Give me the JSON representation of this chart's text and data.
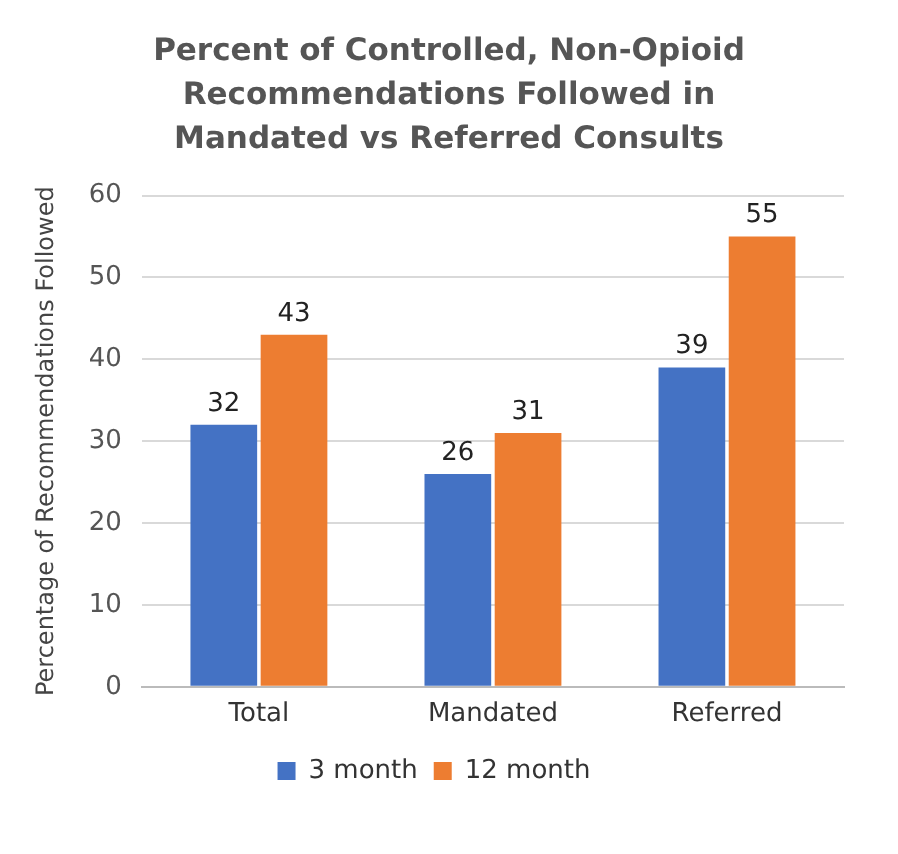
{
  "chart_data": {
    "type": "bar",
    "title": "Percent of Controlled, Non-Opioid Recommendations Followed in Mandated vs Referred Consults",
    "ylabel": "Percentage of Recommendations Followed",
    "categories": [
      "Total",
      "Mandated",
      "Referred"
    ],
    "series": [
      {
        "name": "3 month",
        "color": "#4472c4",
        "values": [
          32,
          26,
          39
        ]
      },
      {
        "name": "12 month",
        "color": "#ed7d31",
        "values": [
          43,
          31,
          55
        ]
      }
    ],
    "ylim": [
      0,
      60
    ],
    "yticks": [
      0,
      10,
      20,
      30,
      40,
      50,
      60
    ],
    "grid": "y",
    "legend": "bottom",
    "data_labels": true
  }
}
